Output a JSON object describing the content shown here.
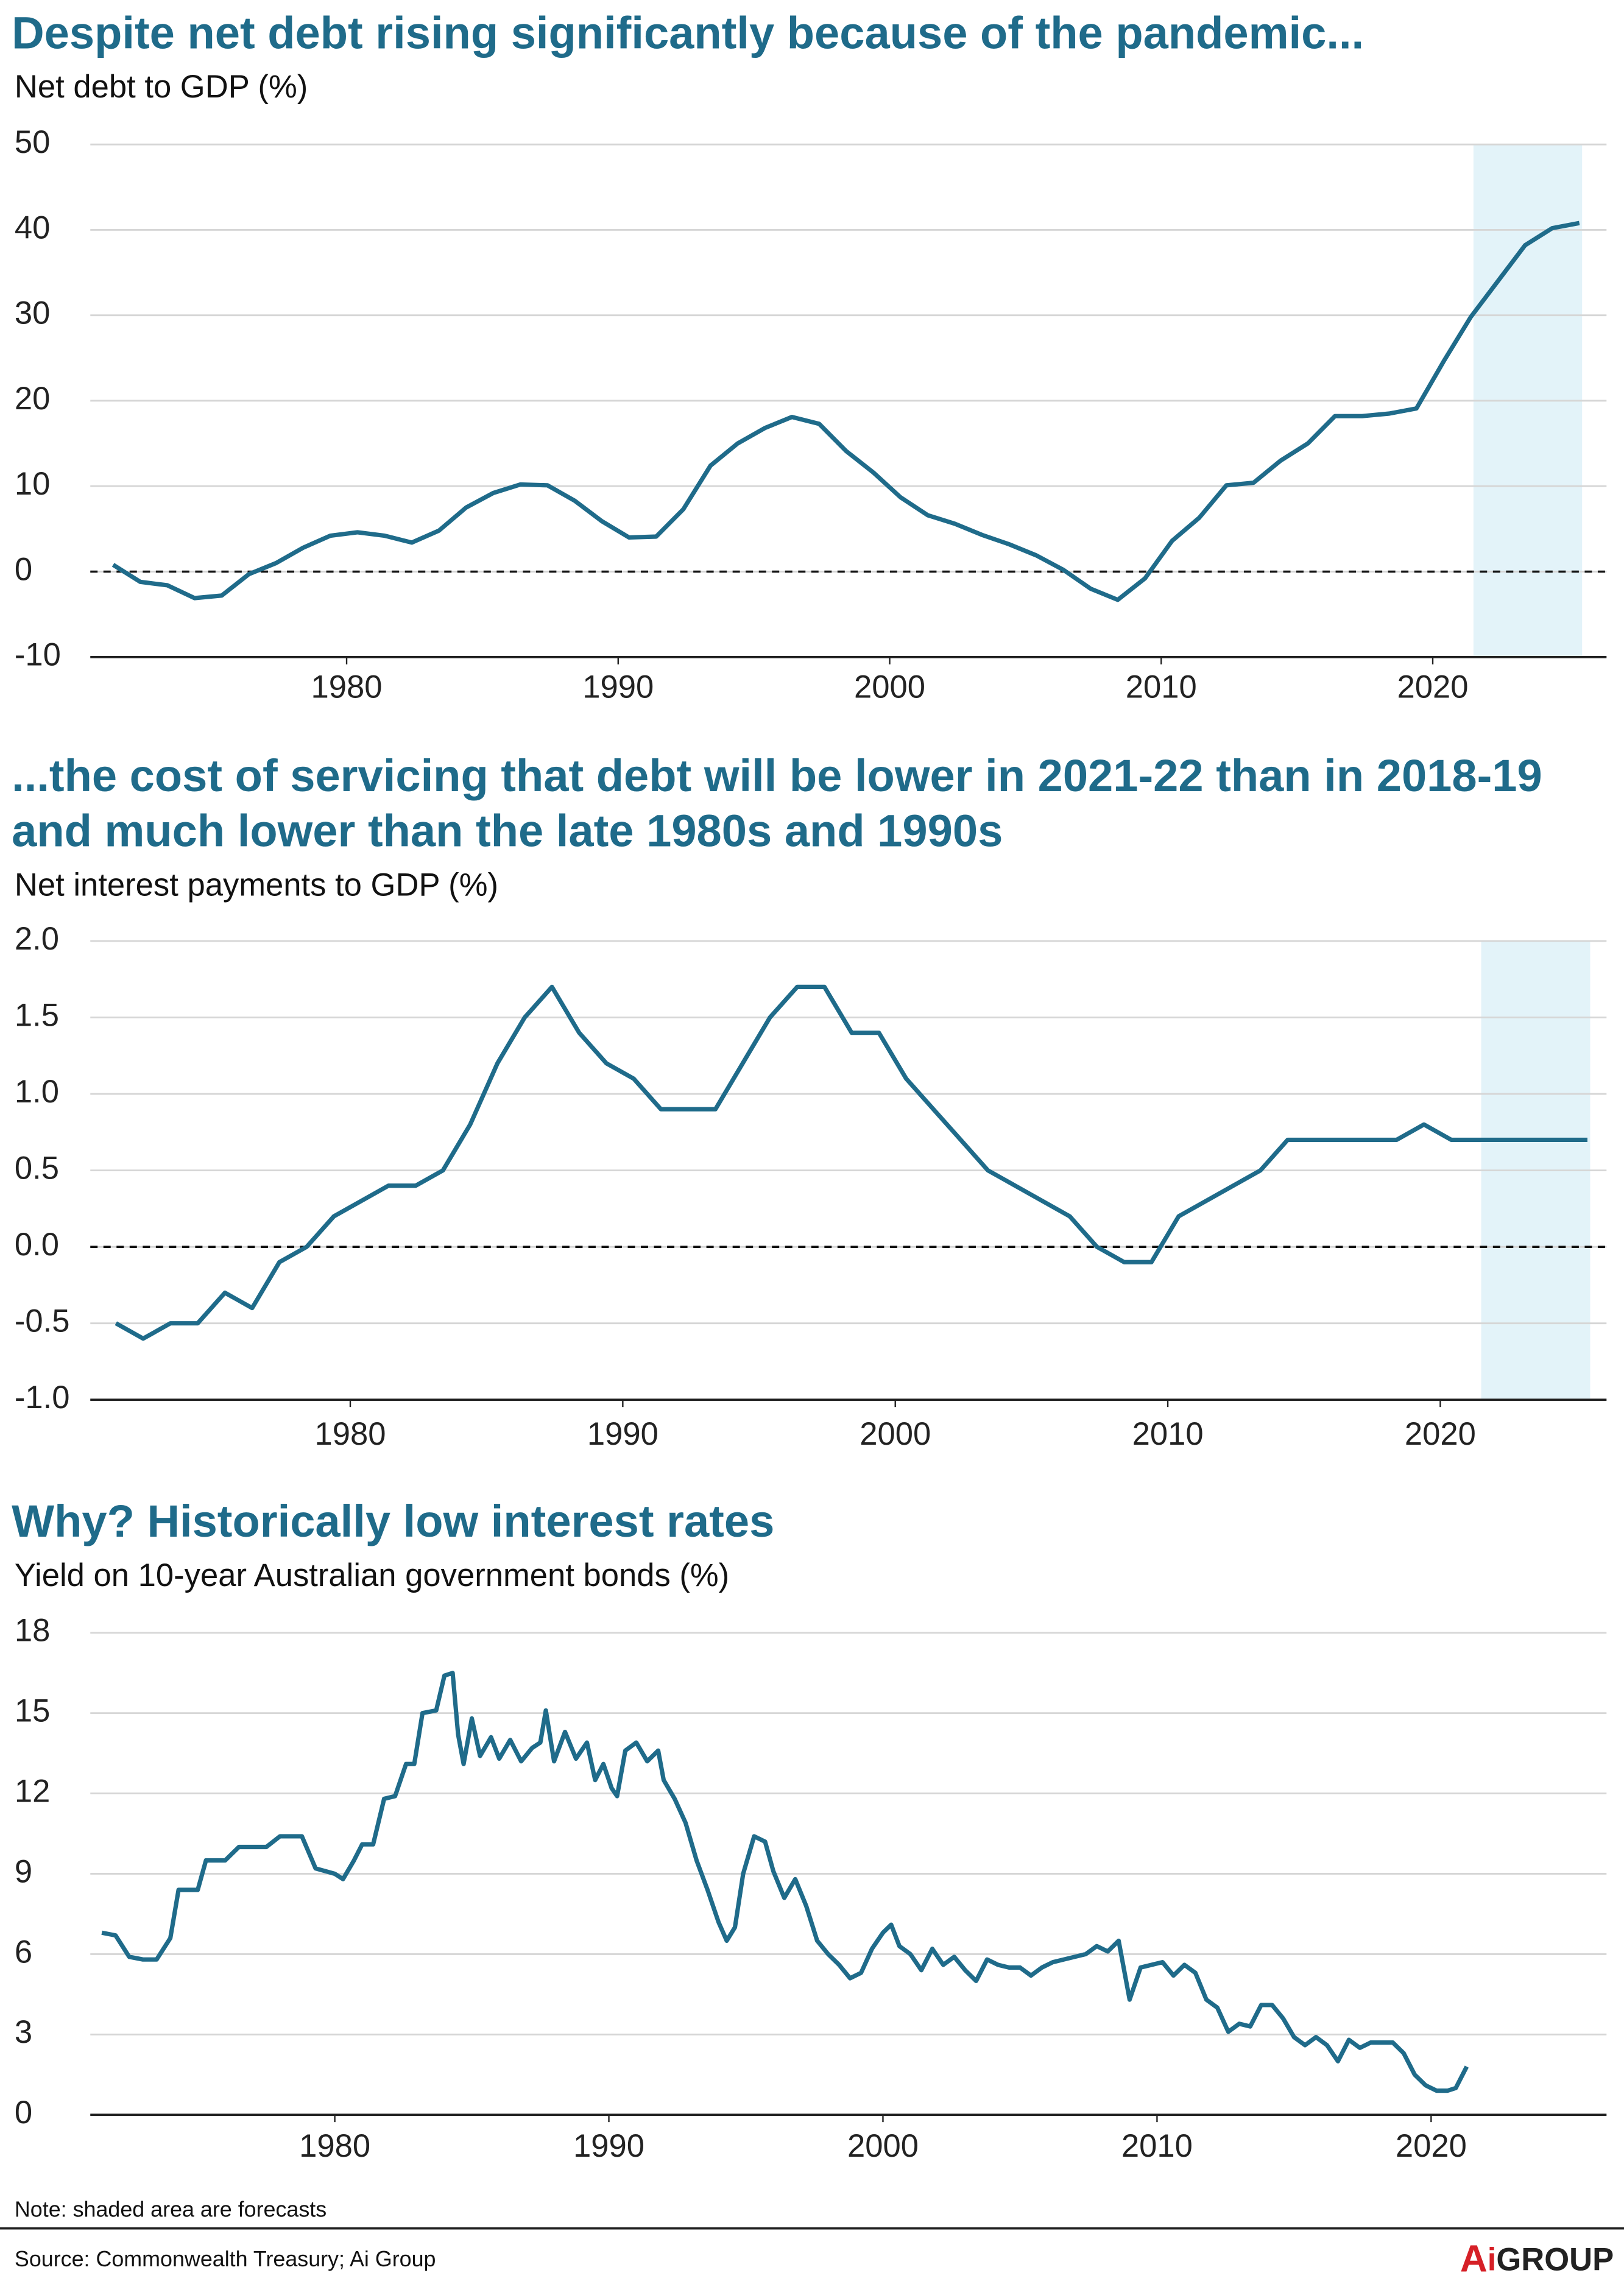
{
  "chart_data": [
    {
      "type": "line",
      "title": "Despite net debt rising significantly because of the pandemic...",
      "y_label": "Net debt to GDP (%)",
      "color": "#1f6b8a",
      "grid": true,
      "zero_line": true,
      "forecast_shade": [
        2021.5,
        2025.5
      ],
      "xlim": [
        1970.56,
        2026.4
      ],
      "xticks": [
        1980,
        1990,
        2000,
        2010,
        2020
      ],
      "ylim": [
        -10,
        50
      ],
      "yticks": [
        -10,
        0,
        10,
        20,
        30,
        40,
        50
      ],
      "x": [
        1971.4,
        1972.4,
        1973.4,
        1974.4,
        1975.4,
        1976.4,
        1977.4,
        1978.4,
        1979.4,
        1980.4,
        1981.4,
        1982.4,
        1983.4,
        1984.4,
        1985.4,
        1986.4,
        1987.4,
        1988.4,
        1989.4,
        1990.4,
        1991.4,
        1992.4,
        1993.4,
        1994.4,
        1995.4,
        1996.4,
        1997.4,
        1998.4,
        1999.4,
        2000.4,
        2001.4,
        2002.4,
        2003.4,
        2004.4,
        2005.4,
        2006.4,
        2007.4,
        2008.4,
        2009.4,
        2010.4,
        2011.4,
        2012.4,
        2013.4,
        2014.4,
        2015.4,
        2016.4,
        2017.4,
        2018.4,
        2019.4,
        2020.4,
        2021.4,
        2022.4,
        2023.4,
        2024.4,
        2025.4
      ],
      "values": [
        0.8,
        -1.2,
        -1.6,
        -3.1,
        -2.8,
        -0.3,
        1,
        2.8,
        4.2,
        4.6,
        4.2,
        3.4,
        4.8,
        7.5,
        9.2,
        10.2,
        10.1,
        8.3,
        5.9,
        4,
        4.1,
        7.3,
        12.4,
        15,
        16.8,
        18.1,
        17.3,
        14.1,
        11.6,
        8.7,
        6.6,
        5.6,
        4.3,
        3.2,
        1.9,
        0.2,
        -2,
        -3.3,
        -0.8,
        3.6,
        6.3,
        10.1,
        10.4,
        13,
        15,
        18.2,
        18.2,
        18.5,
        19.1,
        24.6,
        29.8,
        34,
        38.2,
        40.2,
        40.8
      ]
    },
    {
      "type": "line",
      "title": "...the cost of servicing that debt will be lower in 2021-22 than in 2018-19 and much lower than the late 1980s and 1990s",
      "y_label": "Net interest payments to GDP (%)",
      "color": "#1f6b8a",
      "grid": true,
      "zero_line": true,
      "forecast_shade": [
        2021.5,
        2025.5
      ],
      "xlim": [
        1970.46,
        2026.1
      ],
      "xticks": [
        1980,
        1990,
        2000,
        2010,
        2020
      ],
      "ylim": [
        -1,
        2
      ],
      "yticks": [
        {
          "value": -1,
          "label": "-1.0"
        },
        {
          "value": -0.5,
          "label": "-0.5"
        },
        {
          "value": 0,
          "label": "0.0"
        },
        0.5,
        {
          "value": 1,
          "label": "1.0"
        },
        1.5,
        {
          "value": 2,
          "label": "2.0"
        }
      ],
      "x": [
        1971.4,
        1972.4,
        1973.4,
        1974.4,
        1975.4,
        1976.4,
        1977.4,
        1978.4,
        1979.4,
        1980.4,
        1981.4,
        1982.4,
        1983.4,
        1984.4,
        1985.4,
        1986.4,
        1987.4,
        1988.4,
        1989.4,
        1990.4,
        1991.4,
        1992.4,
        1993.4,
        1994.4,
        1995.4,
        1996.4,
        1997.4,
        1998.4,
        1999.4,
        2000.4,
        2001.4,
        2002.4,
        2003.4,
        2004.4,
        2005.4,
        2006.4,
        2007.4,
        2008.4,
        2009.4,
        2010.4,
        2011.4,
        2012.4,
        2013.4,
        2014.4,
        2015.4,
        2016.4,
        2017.4,
        2018.4,
        2019.4,
        2020.4,
        2021.4,
        2022.4,
        2023.4,
        2024.4,
        2025.4
      ],
      "values": [
        -0.5,
        -0.6,
        -0.5,
        -0.5,
        -0.3,
        -0.4,
        -0.1,
        0,
        0.2,
        0.3,
        0.4,
        0.4,
        0.5,
        0.8,
        1.2,
        1.5,
        1.7,
        1.4,
        1.2,
        1.1,
        0.9,
        0.9,
        0.9,
        1.2,
        1.5,
        1.7,
        1.7,
        1.4,
        1.4,
        1.1,
        0.9,
        0.7,
        0.5,
        0.4,
        0.3,
        0.2,
        0,
        -0.1,
        -0.1,
        0.2,
        0.3,
        0.4,
        0.5,
        0.7,
        0.7,
        0.7,
        0.7,
        0.7,
        0.8,
        0.7,
        0.7,
        0.7,
        0.7,
        0.7,
        0.7
      ]
    },
    {
      "type": "line",
      "title": "Why? Historically low interest rates",
      "y_label": "Yield on 10-year Australian government bonds (%)",
      "color": "#1f6b8a",
      "grid": true,
      "zero_line": false,
      "xlim": [
        1971.08,
        2026.4
      ],
      "xticks": [
        1980,
        1990,
        2000,
        2010,
        2020
      ],
      "ylim": [
        0,
        18
      ],
      "yticks": [
        0,
        3,
        6,
        9,
        12,
        15,
        18
      ],
      "x": [
        1971.5,
        1972.0,
        1972.5,
        1973.0,
        1973.5,
        1974.0,
        1974.3,
        1975.0,
        1975.3,
        1976.0,
        1976.5,
        1977.5,
        1978.0,
        1978.8,
        1979.3,
        1980.0,
        1980.3,
        1980.7,
        1981.0,
        1981.4,
        1981.8,
        1982.2,
        1982.6,
        1982.9,
        1983.2,
        1983.7,
        1984.0,
        1984.3,
        1984.5,
        1984.7,
        1985.0,
        1985.3,
        1985.7,
        1986.0,
        1986.4,
        1986.8,
        1987.2,
        1987.5,
        1987.7,
        1988.0,
        1988.4,
        1988.8,
        1989.2,
        1989.5,
        1989.8,
        1990.1,
        1990.3,
        1990.6,
        1991.0,
        1991.4,
        1991.8,
        1992.0,
        1992.4,
        1992.8,
        1993.2,
        1993.6,
        1994.0,
        1994.3,
        1994.6,
        1994.9,
        1995.3,
        1995.7,
        1996.0,
        1996.4,
        1996.8,
        1997.2,
        1997.6,
        1998.0,
        1998.4,
        1998.8,
        1999.2,
        1999.6,
        2000.0,
        2000.3,
        2000.6,
        2001.0,
        2001.4,
        2001.8,
        2002.2,
        2002.6,
        2003.0,
        2003.4,
        2003.8,
        2004.2,
        2004.6,
        2005.0,
        2005.4,
        2005.8,
        2006.2,
        2006.6,
        2007.0,
        2007.4,
        2007.8,
        2008.2,
        2008.6,
        2009.0,
        2009.4,
        2009.8,
        2010.2,
        2010.6,
        2011.0,
        2011.4,
        2011.8,
        2012.2,
        2012.6,
        2013.0,
        2013.4,
        2013.8,
        2014.2,
        2014.6,
        2015.0,
        2015.4,
        2015.8,
        2016.2,
        2016.6,
        2017.0,
        2017.4,
        2017.8,
        2018.2,
        2018.6,
        2019.0,
        2019.4,
        2019.8,
        2020.2,
        2020.6,
        2020.9,
        2021.1,
        2021.3
      ],
      "values": [
        6.8,
        6.7,
        5.9,
        5.8,
        5.8,
        6.6,
        8.4,
        8.4,
        9.5,
        9.5,
        10.0,
        10.0,
        10.4,
        10.4,
        9.2,
        9.0,
        8.8,
        9.5,
        10.1,
        10.1,
        11.8,
        11.9,
        13.1,
        13.1,
        15.0,
        15.1,
        16.4,
        16.5,
        14.2,
        13.1,
        14.8,
        13.4,
        14.1,
        13.3,
        14.0,
        13.2,
        13.7,
        13.9,
        15.1,
        13.2,
        14.3,
        13.3,
        13.9,
        12.5,
        13.1,
        12.2,
        11.9,
        13.6,
        13.9,
        13.2,
        13.6,
        12.5,
        11.8,
        10.9,
        9.5,
        8.4,
        7.2,
        6.5,
        7.0,
        9.0,
        10.4,
        10.2,
        9.1,
        8.1,
        8.8,
        7.8,
        6.5,
        6.0,
        5.6,
        5.1,
        5.3,
        6.2,
        6.8,
        7.1,
        6.3,
        6.0,
        5.4,
        6.2,
        5.6,
        5.9,
        5.4,
        5.0,
        5.8,
        5.6,
        5.5,
        5.5,
        5.2,
        5.5,
        5.7,
        5.8,
        5.9,
        6.0,
        6.3,
        6.1,
        6.5,
        4.3,
        5.5,
        5.6,
        5.7,
        5.2,
        5.6,
        5.3,
        4.3,
        4.0,
        3.1,
        3.4,
        3.3,
        4.1,
        4.1,
        3.6,
        2.9,
        2.6,
        2.9,
        2.6,
        2.0,
        2.8,
        2.5,
        2.7,
        2.7,
        2.7,
        2.3,
        1.5,
        1.1,
        0.9,
        0.9,
        1.0,
        1.4,
        1.8
      ]
    }
  ],
  "note": "Note: shaded area are forecasts",
  "source": "Source: Commonwealth Treasury; Ai Group",
  "logo": [
    "A",
    "i",
    "GROUP"
  ]
}
